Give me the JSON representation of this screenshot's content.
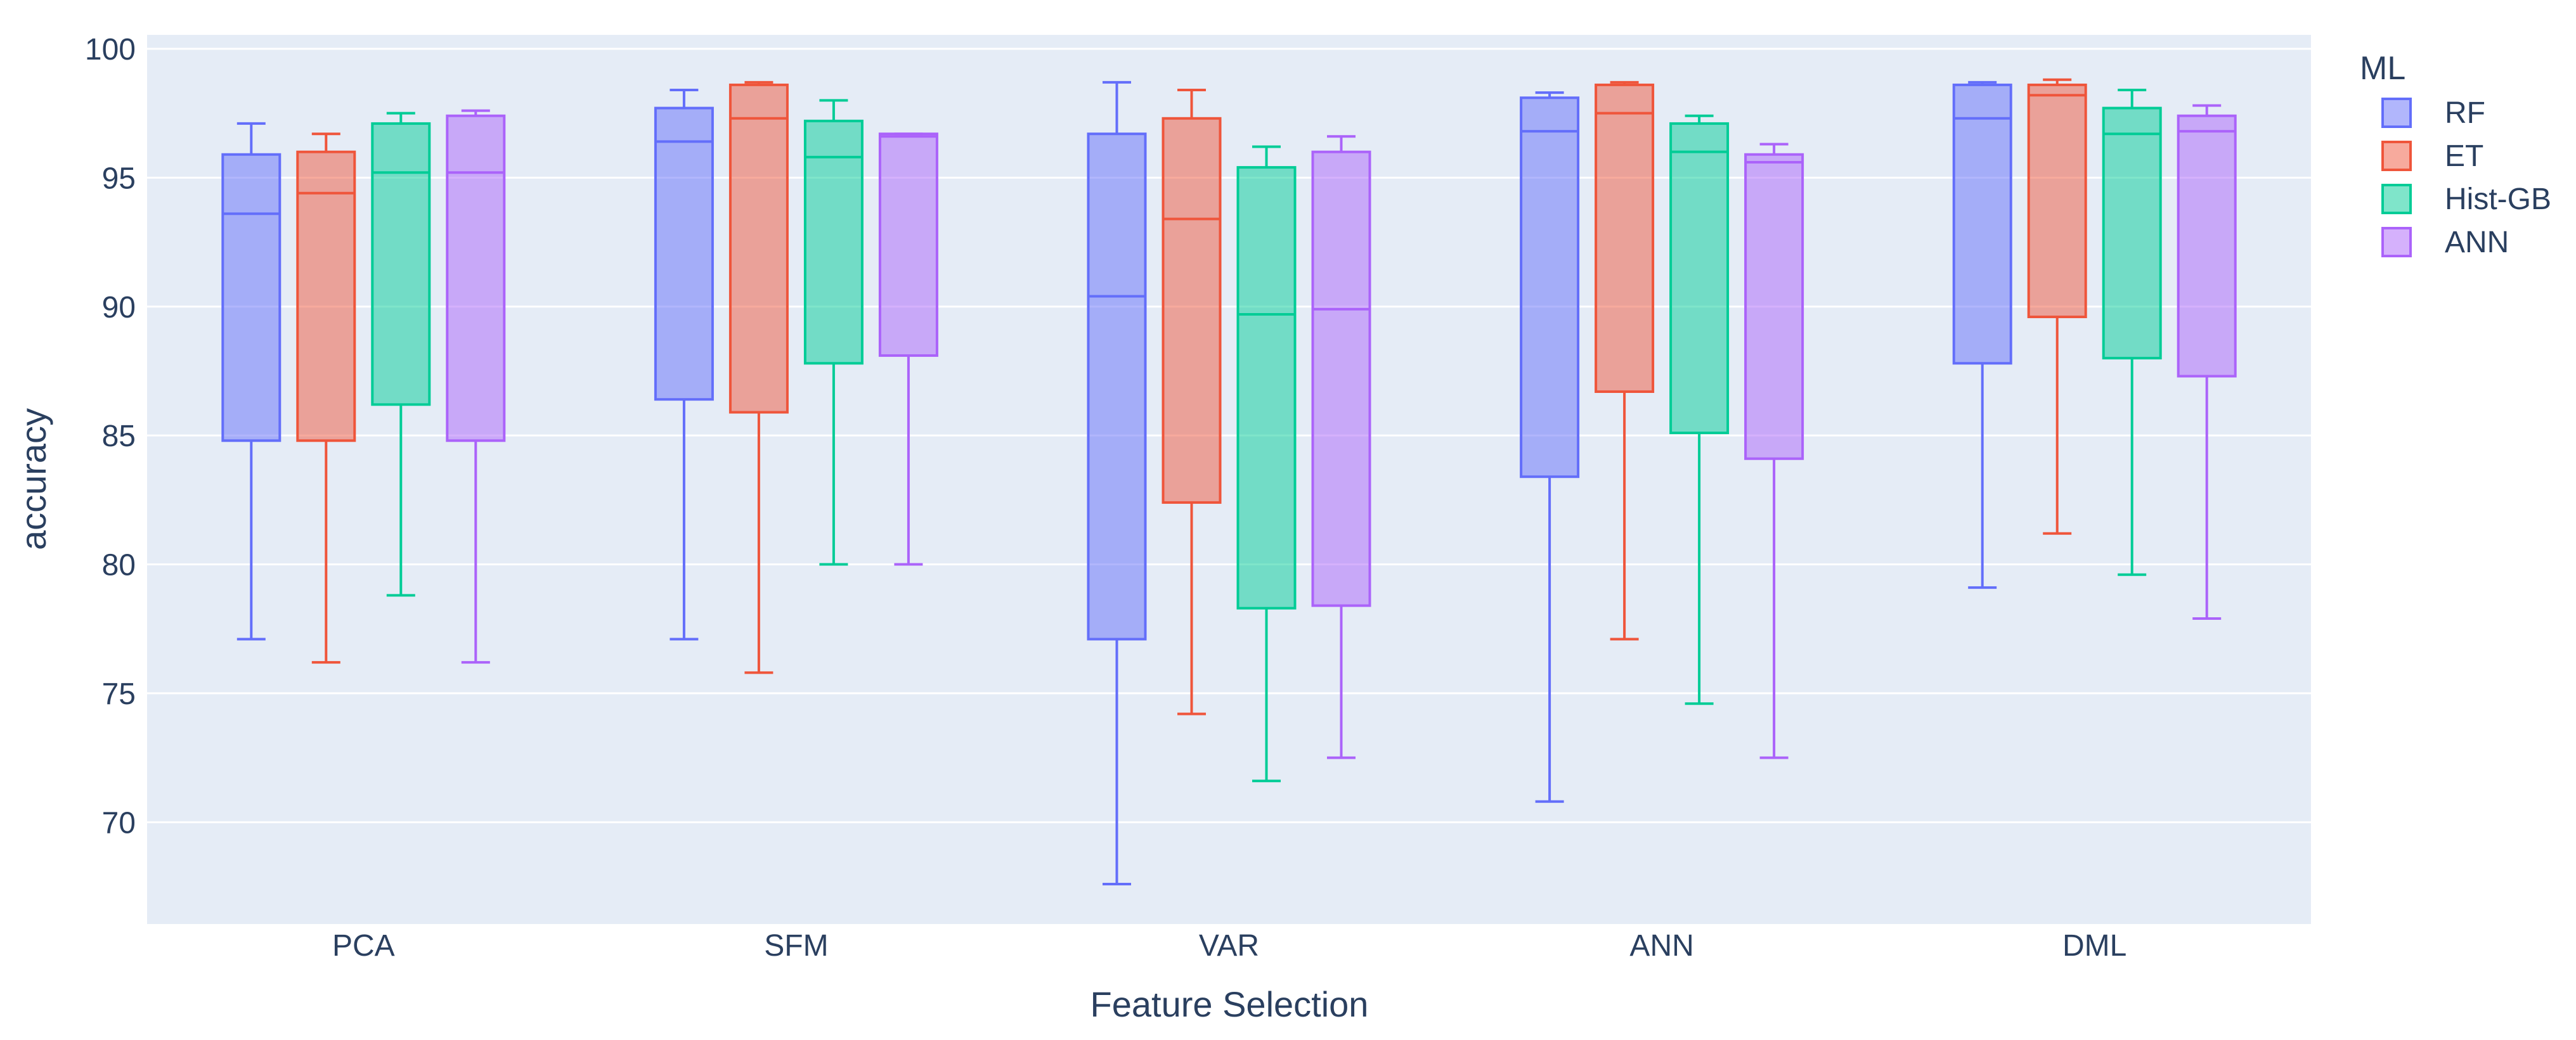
{
  "figure": {
    "paper_bgcolor": "#ffffff",
    "plot_bgcolor": "#e5ecf6",
    "grid_color": "#ffffff",
    "text_color": "#2a3f5f"
  },
  "chart_data": {
    "type": "box",
    "title": "",
    "xlabel": "Feature Selection",
    "ylabel": "accuracy",
    "legend_title": "ML",
    "legend_position": "top-right",
    "grid": true,
    "categories": [
      "PCA",
      "SFM",
      "VAR",
      "ANN",
      "DML"
    ],
    "yticks": [
      70,
      75,
      80,
      85,
      90,
      95,
      100
    ],
    "ylim": [
      66.05,
      100.54
    ],
    "series": [
      {
        "name": "RF",
        "color": "#636EFA",
        "boxes": [
          {
            "low": 77.1,
            "q1": 84.8,
            "median": 93.6,
            "q3": 95.9,
            "high": 97.1
          },
          {
            "low": 77.1,
            "q1": 86.4,
            "median": 96.4,
            "q3": 97.7,
            "high": 98.4
          },
          {
            "low": 67.6,
            "q1": 77.1,
            "median": 90.4,
            "q3": 96.7,
            "high": 98.7
          },
          {
            "low": 70.8,
            "q1": 83.4,
            "median": 96.8,
            "q3": 98.1,
            "high": 98.3
          },
          {
            "low": 79.1,
            "q1": 87.8,
            "median": 97.3,
            "q3": 98.6,
            "high": 98.7
          }
        ]
      },
      {
        "name": "ET",
        "color": "#EF553B",
        "boxes": [
          {
            "low": 76.2,
            "q1": 84.8,
            "median": 94.4,
            "q3": 96.0,
            "high": 96.7
          },
          {
            "low": 75.8,
            "q1": 85.9,
            "median": 97.3,
            "q3": 98.6,
            "high": 98.7
          },
          {
            "low": 74.2,
            "q1": 82.4,
            "median": 93.4,
            "q3": 97.3,
            "high": 98.4
          },
          {
            "low": 77.1,
            "q1": 86.7,
            "median": 97.5,
            "q3": 98.6,
            "high": 98.7
          },
          {
            "low": 81.2,
            "q1": 89.6,
            "median": 98.2,
            "q3": 98.6,
            "high": 98.8
          }
        ]
      },
      {
        "name": "Hist-GB",
        "color": "#00CC96",
        "boxes": [
          {
            "low": 78.8,
            "q1": 86.2,
            "median": 95.2,
            "q3": 97.1,
            "high": 97.5
          },
          {
            "low": 80.0,
            "q1": 87.8,
            "median": 95.8,
            "q3": 97.2,
            "high": 98.0
          },
          {
            "low": 71.6,
            "q1": 78.3,
            "median": 89.7,
            "q3": 95.4,
            "high": 96.2
          },
          {
            "low": 74.6,
            "q1": 85.1,
            "median": 96.0,
            "q3": 97.1,
            "high": 97.4
          },
          {
            "low": 79.6,
            "q1": 88.0,
            "median": 96.7,
            "q3": 97.7,
            "high": 98.4
          }
        ]
      },
      {
        "name": "ANN",
        "color": "#AB63FA",
        "boxes": [
          {
            "low": 76.2,
            "q1": 84.8,
            "median": 95.2,
            "q3": 97.4,
            "high": 97.6
          },
          {
            "low": 80.0,
            "q1": 88.1,
            "median": 96.6,
            "q3": 96.7,
            "high": 96.7
          },
          {
            "low": 72.5,
            "q1": 78.4,
            "median": 89.9,
            "q3": 96.0,
            "high": 96.6
          },
          {
            "low": 72.5,
            "q1": 84.1,
            "median": 95.6,
            "q3": 95.9,
            "high": 96.3
          },
          {
            "low": 77.9,
            "q1": 87.3,
            "median": 96.8,
            "q3": 97.4,
            "high": 97.8
          }
        ]
      }
    ]
  }
}
